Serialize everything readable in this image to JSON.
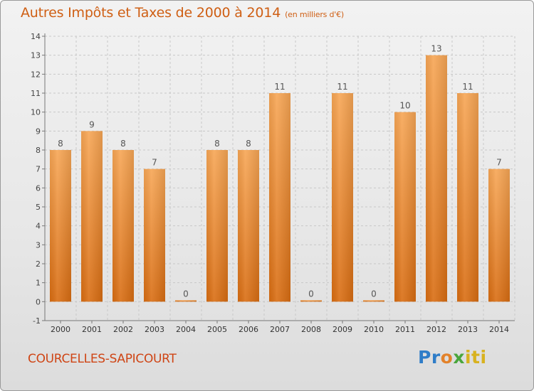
{
  "title": "Autres Impôts et Taxes de 2000 à 2014",
  "unit": "(en milliers d'€)",
  "commune": "COURCELLES-SAPICOURT",
  "logo": {
    "p1": "Pr",
    "p2": "o",
    "p3": "x",
    "p4": "iti"
  },
  "colors": {
    "bar_light": "#f7a655",
    "bar_dark": "#d96d12",
    "title": "#cf5f14",
    "grid": "#c8c8c8"
  },
  "chart_data": {
    "type": "bar",
    "categories": [
      "2000",
      "2001",
      "2002",
      "2003",
      "2004",
      "2005",
      "2006",
      "2007",
      "2008",
      "2009",
      "2010",
      "2011",
      "2012",
      "2013",
      "2014"
    ],
    "values": [
      8,
      9,
      8,
      7,
      0,
      8,
      8,
      11,
      0,
      11,
      0,
      10,
      13,
      11,
      7
    ],
    "title": "Autres Impôts et Taxes de 2000 à 2014",
    "xlabel": "",
    "ylabel": "",
    "ylim": [
      -1,
      14
    ],
    "yticks": [
      -1,
      0,
      1,
      2,
      3,
      4,
      5,
      6,
      7,
      8,
      9,
      10,
      11,
      12,
      13,
      14
    ],
    "grid": true
  }
}
